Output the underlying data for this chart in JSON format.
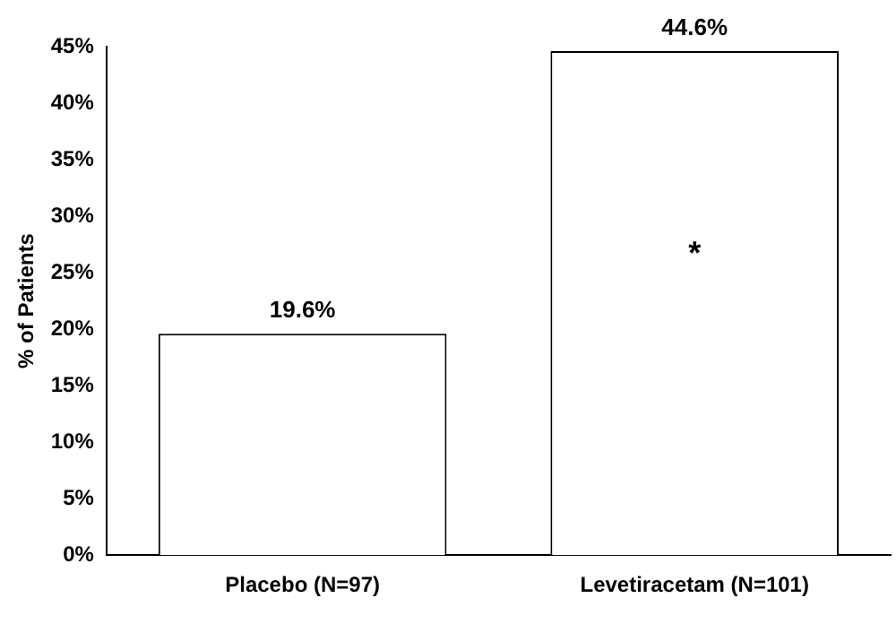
{
  "chart_data": {
    "type": "bar",
    "ylabel": "% of Patients",
    "categories": [
      "Placebo (N=97)",
      "Levetiracetam (N=101)"
    ],
    "values": [
      19.6,
      44.6
    ],
    "color": "#ffffff",
    "value_labels": [
      "19.6%",
      "44.6%"
    ],
    "ylim": [
      0,
      45
    ],
    "yticks": [
      {
        "value": 0,
        "label": "0%"
      },
      {
        "value": 5,
        "label": "5%"
      },
      {
        "value": 10,
        "label": "10%"
      },
      {
        "value": 15,
        "label": "15%"
      },
      {
        "value": 20,
        "label": "20%"
      },
      {
        "value": 25,
        "label": "25%"
      },
      {
        "value": 30,
        "label": "30%"
      },
      {
        "value": 35,
        "label": "35%"
      },
      {
        "value": 40,
        "label": "40%"
      },
      {
        "value": 45,
        "label": "45%"
      }
    ],
    "annotations": [
      "*"
    ],
    "grid": false,
    "legend": false
  }
}
